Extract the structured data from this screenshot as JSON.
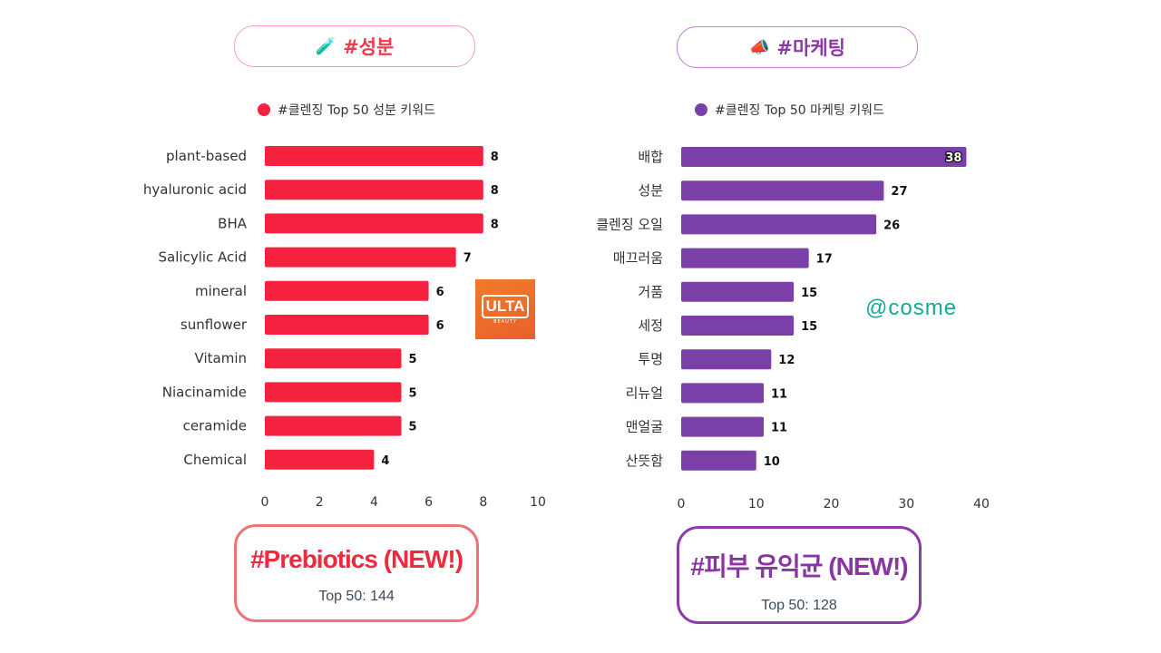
{
  "left_panel": {
    "badge_icon": "🧪",
    "badge_label": "#성분",
    "legend_label": "#클렌징 Top 50 성분 키워드",
    "card_title": "#Prebiotics (NEW!)",
    "card_subtitle": "Top 50: 144",
    "logo_text": "ULTA",
    "logo_subtext": "BEAUTY",
    "accent": "#f5223f"
  },
  "right_panel": {
    "badge_icon": "📣",
    "badge_label": "#마케팅",
    "legend_label": "#클렌징 Top 50 마케팅 키워드",
    "card_title": "#피부 유익균 (NEW!)",
    "card_subtitle": "Top 50: 128",
    "logo_text": "@cosme",
    "accent": "#7b3fa8"
  },
  "chart_data": [
    {
      "type": "bar",
      "orientation": "horizontal",
      "categories": [
        "plant-based",
        "hyaluronic acid",
        "BHA",
        "Salicylic Acid",
        "mineral",
        "sunflower",
        "Vitamin",
        "Niacinamide",
        "ceramide",
        "Chemical"
      ],
      "values": [
        8,
        8,
        8,
        7,
        6,
        6,
        5,
        5,
        5,
        4
      ],
      "xlim": [
        0,
        10
      ],
      "xticks": [
        0,
        2,
        4,
        6,
        8,
        10
      ],
      "series": [
        {
          "name": "#클렌징 Top 50 성분 키워드",
          "values": [
            8,
            8,
            8,
            7,
            6,
            6,
            5,
            5,
            5,
            4
          ]
        }
      ],
      "color": "#f5223f",
      "grid": false,
      "legend_position": "top"
    },
    {
      "type": "bar",
      "orientation": "horizontal",
      "categories": [
        "배합",
        "성분",
        "클렌징 오일",
        "매끄러움",
        "거품",
        "세정",
        "투명",
        "리뉴얼",
        "맨얼굴",
        "산뜻함"
      ],
      "values": [
        38,
        27,
        26,
        17,
        15,
        15,
        12,
        11,
        11,
        10
      ],
      "xlim": [
        0,
        40
      ],
      "xticks": [
        0,
        10,
        20,
        30,
        40
      ],
      "series": [
        {
          "name": "#클렌징 Top 50 마케팅 키워드",
          "values": [
            38,
            27,
            26,
            17,
            15,
            15,
            12,
            11,
            11,
            10
          ]
        }
      ],
      "color": "#7b3fa8",
      "grid": false,
      "legend_position": "top"
    }
  ]
}
